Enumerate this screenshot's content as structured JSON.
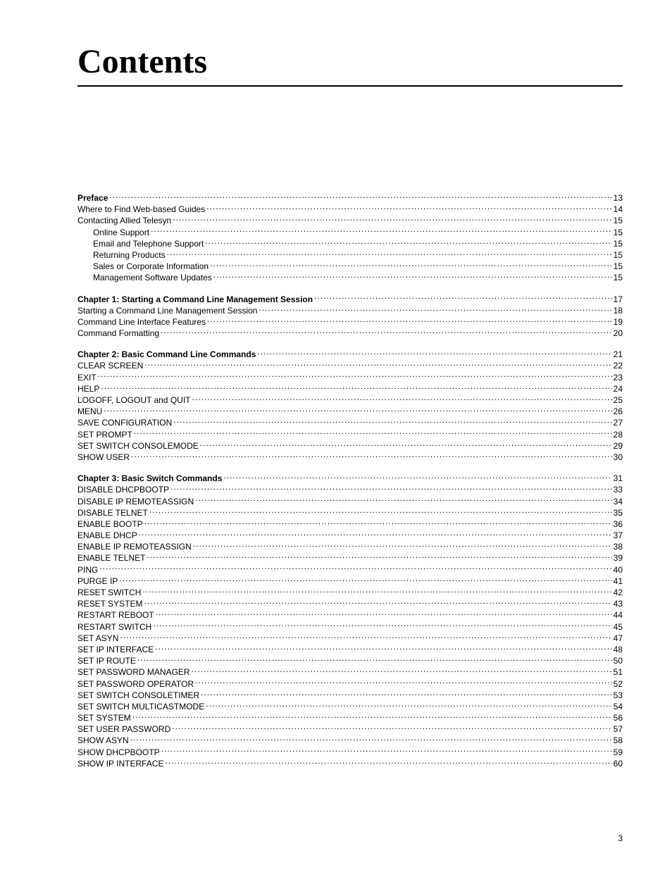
{
  "title": "Contents",
  "page_number": "3",
  "toc_groups": [
    {
      "entries": [
        {
          "label": "Preface",
          "page": "13",
          "bold": true,
          "indent": 0
        },
        {
          "label": "Where to Find Web-based Guides",
          "page": "14",
          "bold": false,
          "indent": 0
        },
        {
          "label": "Contacting Allied Telesyn",
          "page": "15",
          "bold": false,
          "indent": 0
        },
        {
          "label": "Online Support",
          "page": "15",
          "bold": false,
          "indent": 1
        },
        {
          "label": "Email and Telephone Support",
          "page": "15",
          "bold": false,
          "indent": 1
        },
        {
          "label": "Returning Products",
          "page": "15",
          "bold": false,
          "indent": 1
        },
        {
          "label": "Sales or Corporate Information",
          "page": "15",
          "bold": false,
          "indent": 1
        },
        {
          "label": "Management Software Updates",
          "page": "15",
          "bold": false,
          "indent": 1
        }
      ]
    },
    {
      "entries": [
        {
          "label": "Chapter 1: Starting a Command Line Management Session",
          "page": "17",
          "bold": true,
          "indent": 0
        },
        {
          "label": "Starting a Command Line Management Session",
          "page": "18",
          "bold": false,
          "indent": 0
        },
        {
          "label": "Command Line Interface Features",
          "page": "19",
          "bold": false,
          "indent": 0
        },
        {
          "label": "Command Formatting",
          "page": "20",
          "bold": false,
          "indent": 0
        }
      ]
    },
    {
      "entries": [
        {
          "label": "Chapter 2: Basic Command Line Commands",
          "page": "21",
          "bold": true,
          "indent": 0
        },
        {
          "label": "CLEAR SCREEN",
          "page": "22",
          "bold": false,
          "indent": 0
        },
        {
          "label": "EXIT",
          "page": "23",
          "bold": false,
          "indent": 0
        },
        {
          "label": "HELP",
          "page": "24",
          "bold": false,
          "indent": 0
        },
        {
          "label": "LOGOFF, LOGOUT and QUIT",
          "page": "25",
          "bold": false,
          "indent": 0
        },
        {
          "label": "MENU",
          "page": "26",
          "bold": false,
          "indent": 0
        },
        {
          "label": "SAVE CONFIGURATION",
          "page": "27",
          "bold": false,
          "indent": 0
        },
        {
          "label": "SET PROMPT",
          "page": "28",
          "bold": false,
          "indent": 0
        },
        {
          "label": "SET SWITCH CONSOLEMODE",
          "page": "29",
          "bold": false,
          "indent": 0
        },
        {
          "label": "SHOW USER",
          "page": "30",
          "bold": false,
          "indent": 0
        }
      ]
    },
    {
      "entries": [
        {
          "label": "Chapter 3: Basic Switch Commands",
          "page": "31",
          "bold": true,
          "indent": 0
        },
        {
          "label": "DISABLE DHCPBOOTP",
          "page": "33",
          "bold": false,
          "indent": 0
        },
        {
          "label": "DISABLE IP REMOTEASSIGN",
          "page": "34",
          "bold": false,
          "indent": 0
        },
        {
          "label": "DISABLE TELNET",
          "page": "35",
          "bold": false,
          "indent": 0
        },
        {
          "label": "ENABLE BOOTP",
          "page": "36",
          "bold": false,
          "indent": 0
        },
        {
          "label": "ENABLE DHCP",
          "page": "37",
          "bold": false,
          "indent": 0
        },
        {
          "label": "ENABLE IP REMOTEASSIGN",
          "page": "38",
          "bold": false,
          "indent": 0
        },
        {
          "label": "ENABLE TELNET",
          "page": "39",
          "bold": false,
          "indent": 0
        },
        {
          "label": "PING",
          "page": "40",
          "bold": false,
          "indent": 0
        },
        {
          "label": "PURGE IP",
          "page": "41",
          "bold": false,
          "indent": 0
        },
        {
          "label": "RESET SWITCH",
          "page": "42",
          "bold": false,
          "indent": 0
        },
        {
          "label": "RESET SYSTEM",
          "page": "43",
          "bold": false,
          "indent": 0
        },
        {
          "label": "RESTART REBOOT",
          "page": "44",
          "bold": false,
          "indent": 0
        },
        {
          "label": "RESTART SWITCH",
          "page": "45",
          "bold": false,
          "indent": 0
        },
        {
          "label": "SET ASYN",
          "page": "47",
          "bold": false,
          "indent": 0
        },
        {
          "label": "SET IP INTERFACE",
          "page": "48",
          "bold": false,
          "indent": 0
        },
        {
          "label": "SET IP ROUTE",
          "page": "50",
          "bold": false,
          "indent": 0
        },
        {
          "label": "SET PASSWORD MANAGER",
          "page": "51",
          "bold": false,
          "indent": 0
        },
        {
          "label": "SET PASSWORD OPERATOR",
          "page": "52",
          "bold": false,
          "indent": 0
        },
        {
          "label": "SET SWITCH CONSOLETIMER",
          "page": "53",
          "bold": false,
          "indent": 0
        },
        {
          "label": "SET SWITCH MULTICASTMODE",
          "page": "54",
          "bold": false,
          "indent": 0
        },
        {
          "label": "SET SYSTEM",
          "page": "56",
          "bold": false,
          "indent": 0
        },
        {
          "label": "SET USER PASSWORD",
          "page": "57",
          "bold": false,
          "indent": 0
        },
        {
          "label": "SHOW ASYN",
          "page": "58",
          "bold": false,
          "indent": 0
        },
        {
          "label": "SHOW DHCPBOOTP",
          "page": "59",
          "bold": false,
          "indent": 0
        },
        {
          "label": "SHOW IP INTERFACE",
          "page": "60",
          "bold": false,
          "indent": 0
        }
      ]
    }
  ]
}
